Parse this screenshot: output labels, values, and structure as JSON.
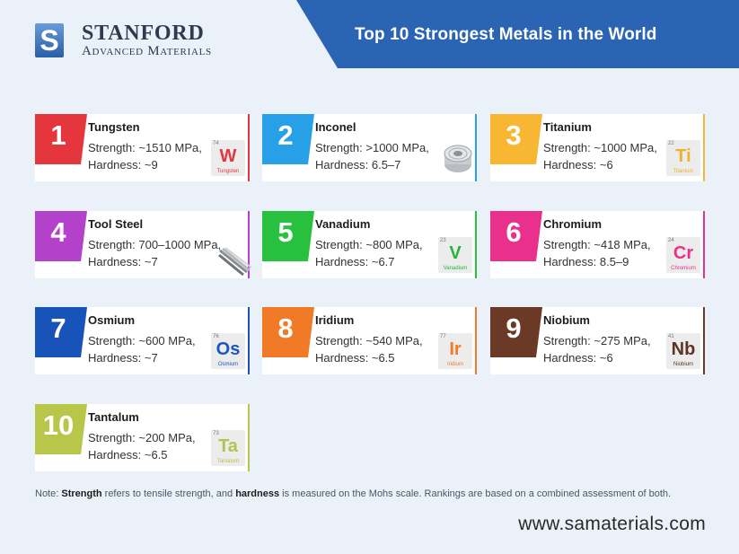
{
  "brand": {
    "name": "STANFORD",
    "sub": "Advanced Materials",
    "logo_letter": "S"
  },
  "title": "Top 10 Strongest Metals in the World",
  "metals": [
    {
      "rank": "1",
      "name": "Tungsten",
      "strength": "Strength: ~1510 MPa,",
      "hardness": "Hardness: ~9",
      "tile": {
        "z": "74",
        "sym": "W",
        "el": "Tungsten"
      },
      "color": "#e5363d",
      "sym_color": "#e5363d"
    },
    {
      "rank": "2",
      "name": "Inconel",
      "strength": "Strength: >1000 MPa,",
      "hardness": "Hardness: 6.5–7",
      "image": "wire-spool",
      "color": "#28a0e8"
    },
    {
      "rank": "3",
      "name": "Titanium",
      "strength": "Strength: ~1000 MPa,",
      "hardness": "Hardness: ~6",
      "tile": {
        "z": "22",
        "sym": "Ti",
        "el": "Titanium"
      },
      "color": "#f7b733",
      "sym_color": "#f0b22c"
    },
    {
      "rank": "4",
      "name": "Tool Steel",
      "strength": "Strength: 700–1000 MPa,",
      "hardness": "Hardness: ~7",
      "image": "steel-rods",
      "color": "#b341c9"
    },
    {
      "rank": "5",
      "name": "Vanadium",
      "strength": "Strength: ~800 MPa,",
      "hardness": "Hardness: ~6.7",
      "tile": {
        "z": "23",
        "sym": "V",
        "el": "Vanadium"
      },
      "color": "#27c13f",
      "sym_color": "#27b33c"
    },
    {
      "rank": "6",
      "name": "Chromium",
      "strength": "Strength: ~418 MPa,",
      "hardness": "Hardness: 8.5–9",
      "tile": {
        "z": "24",
        "sym": "Cr",
        "el": "Chromium"
      },
      "color": "#e8308c",
      "sym_color": "#e8308c"
    },
    {
      "rank": "7",
      "name": "Osmium",
      "strength": "Strength: ~600 MPa,",
      "hardness": "Hardness: ~7",
      "tile": {
        "z": "76",
        "sym": "Os",
        "el": "Osmium"
      },
      "color": "#1753b8",
      "sym_color": "#1a56c0"
    },
    {
      "rank": "8",
      "name": "Iridium",
      "strength": "Strength: ~540 MPa,",
      "hardness": "Hardness: ~6.5",
      "tile": {
        "z": "77",
        "sym": "Ir",
        "el": "Iridium"
      },
      "color": "#f07a25",
      "sym_color": "#f07a25"
    },
    {
      "rank": "9",
      "name": "Niobium",
      "strength": "Strength: ~275 MPa,",
      "hardness": "Hardness: ~6",
      "tile": {
        "z": "41",
        "sym": "Nb",
        "el": "Niobium"
      },
      "color": "#6b3a26",
      "sym_color": "#5b3424"
    },
    {
      "rank": "10",
      "name": "Tantalum",
      "strength": "Strength: ~200 MPa,",
      "hardness": "Hardness: ~6.5",
      "tile": {
        "z": "73",
        "sym": "Ta",
        "el": "Tantalum"
      },
      "color": "#b8c64a",
      "sym_color": "#b5c24c"
    }
  ],
  "note": {
    "p1": "Note: ",
    "strength_term": "Strength",
    "p2": " refers to tensile strength, and ",
    "hardness_term": "hardness",
    "p3": " is measured on the Mohs scale. Rankings are based on a combined assessment of both."
  },
  "website": "www.samaterials.com"
}
